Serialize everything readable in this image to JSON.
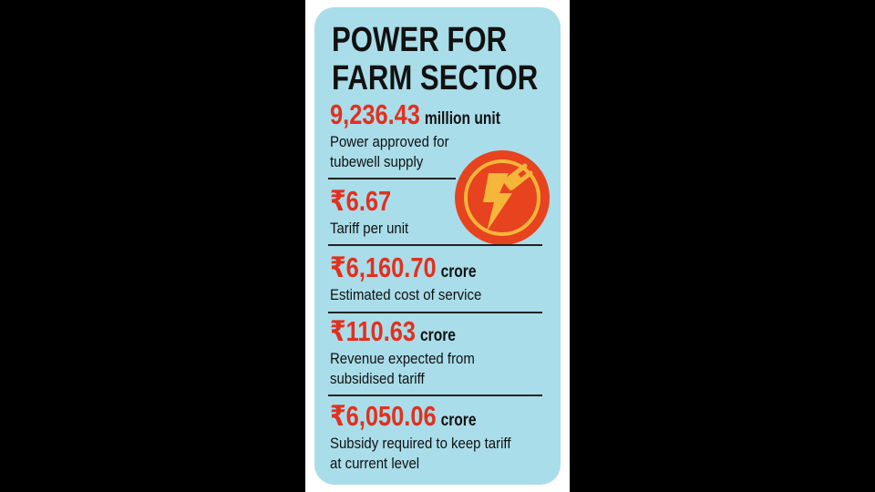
{
  "header": {
    "title_lines": [
      "POWER FOR",
      "FARM SECTOR"
    ]
  },
  "items": [
    {
      "value": "9,236.43",
      "unit": "million unit",
      "desc_lines": [
        "Power approved for",
        "tubewell supply"
      ]
    },
    {
      "value": "₹6.67",
      "unit": null,
      "desc_lines": [
        "Tariff per unit"
      ]
    },
    {
      "value": "₹6,160.70",
      "unit": "crore",
      "desc_lines": [
        "Estimated cost of service"
      ]
    },
    {
      "value": "₹110.63",
      "unit": "crore",
      "desc_lines": [
        "Revenue expected from",
        "subsidised tariff"
      ]
    },
    {
      "value": "₹6,050.06",
      "unit": "crore",
      "desc_lines": [
        "Subsidy required to keep tariff",
        "at current level"
      ]
    }
  ]
}
